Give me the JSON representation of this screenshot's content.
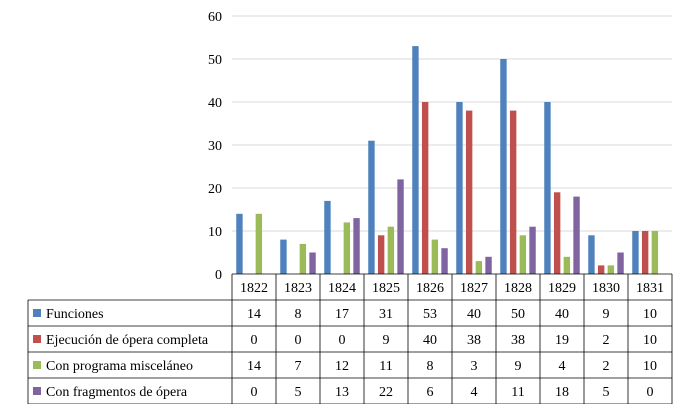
{
  "chart_data": {
    "type": "bar",
    "title": "",
    "xlabel": "",
    "ylabel": "",
    "ylim": [
      0,
      60
    ],
    "yticks": [
      0,
      10,
      20,
      30,
      40,
      50,
      60
    ],
    "grid": true,
    "legend": "data-table-left",
    "categories": [
      "1822",
      "1823",
      "1824",
      "1825",
      "1826",
      "1827",
      "1828",
      "1829",
      "1830",
      "1831"
    ],
    "series": [
      {
        "name": "Funciones",
        "color": "#4f81bd",
        "values": [
          14,
          8,
          17,
          31,
          53,
          40,
          50,
          40,
          9,
          10
        ]
      },
      {
        "name": "Ejecución de ópera completa",
        "color": "#c0504d",
        "values": [
          0,
          0,
          0,
          9,
          40,
          38,
          38,
          19,
          2,
          10
        ]
      },
      {
        "name": "Con programa misceláneo",
        "color": "#9bbb59",
        "values": [
          14,
          7,
          12,
          11,
          8,
          3,
          9,
          4,
          2,
          10
        ]
      },
      {
        "name": "Con fragmentos de ópera",
        "color": "#8064a2",
        "values": [
          0,
          5,
          13,
          22,
          6,
          4,
          11,
          18,
          5,
          0
        ]
      }
    ]
  }
}
